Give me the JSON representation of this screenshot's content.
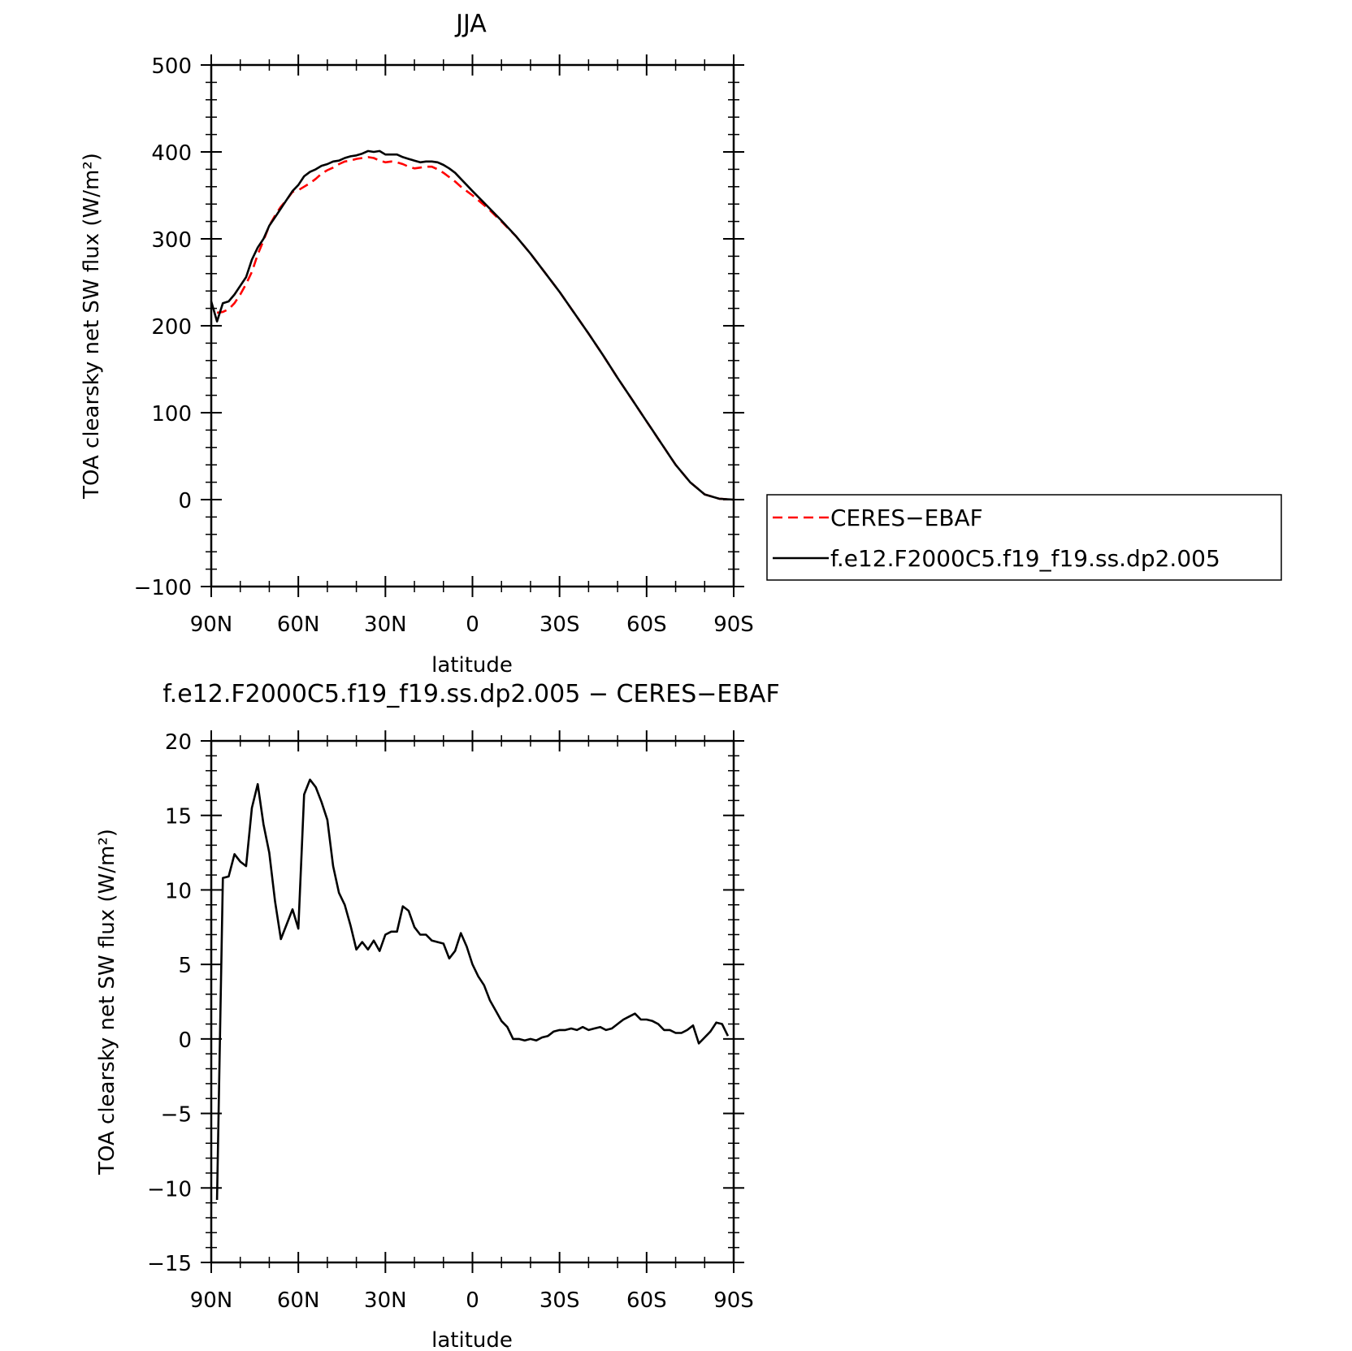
{
  "chart_data": [
    {
      "type": "line",
      "title": "JJA",
      "xlabel": "latitude",
      "ylabel": "TOA clearsky net SW flux (W/m²)",
      "xlim": [
        90,
        -90
      ],
      "ylim": [
        -100,
        500
      ],
      "xticks": [
        90,
        60,
        30,
        0,
        -30,
        -60,
        -90
      ],
      "xtick_labels": [
        "90N",
        "60N",
        "30N",
        "0",
        "30S",
        "60S",
        "90S"
      ],
      "yticks": [
        -100,
        0,
        100,
        200,
        300,
        400,
        500
      ],
      "ytick_labels": [
        "−100",
        "0",
        "100",
        "200",
        "300",
        "400",
        "500"
      ],
      "grid": false,
      "legend": {
        "placement": "outside-right",
        "entries": [
          "CERES−EBAF",
          "f.e12.F2000C5.f19_f19.ss.dp2.005"
        ]
      },
      "series": [
        {
          "name": "CERES−EBAF",
          "color": "#ff0000",
          "dash": "dashed",
          "x": [
            88,
            86,
            84,
            82,
            80,
            78,
            76,
            74,
            72,
            70,
            68,
            66,
            64,
            62,
            60,
            58,
            56,
            54,
            52,
            50,
            48,
            46,
            44,
            42,
            40,
            38,
            36,
            34,
            32,
            30,
            28,
            26,
            24,
            22,
            20,
            18,
            16,
            14,
            12,
            10,
            8,
            6,
            4,
            2,
            0,
            -5,
            -10,
            -15,
            -20,
            -25,
            -30,
            -35,
            -40,
            -45,
            -50,
            -55,
            -60,
            -62,
            -64,
            -66,
            -68,
            -70,
            -75,
            -80,
            -85,
            -90
          ],
          "y": [
            215,
            216,
            219,
            226,
            236,
            248,
            262,
            282,
            298,
            315,
            327,
            337,
            345,
            354,
            356,
            360,
            364,
            369,
            375,
            379,
            382,
            386,
            389,
            390,
            392,
            393,
            394,
            393,
            390,
            388,
            389,
            388,
            386,
            383,
            381,
            382,
            383,
            383,
            380,
            376,
            371,
            366,
            360,
            355,
            350,
            336,
            320,
            303,
            283,
            261,
            239,
            215,
            191,
            166,
            140,
            115,
            90,
            80,
            70,
            60,
            50,
            40,
            20,
            6,
            1,
            0
          ]
        },
        {
          "name": "f.e12.F2000C5.f19_f19.ss.dp2.005",
          "color": "#000000",
          "dash": "solid",
          "x": [
            90,
            88,
            86,
            84,
            82,
            80,
            78,
            76,
            74,
            72,
            70,
            68,
            66,
            64,
            62,
            60,
            58,
            56,
            54,
            52,
            50,
            48,
            46,
            44,
            42,
            40,
            38,
            36,
            34,
            32,
            30,
            28,
            26,
            24,
            22,
            20,
            18,
            16,
            14,
            12,
            10,
            8,
            6,
            4,
            2,
            0,
            -5,
            -10,
            -15,
            -20,
            -25,
            -30,
            -35,
            -40,
            -45,
            -50,
            -55,
            -60,
            -62,
            -64,
            -66,
            -68,
            -70,
            -75,
            -80,
            -85,
            -90
          ],
          "y": [
            228,
            205,
            226,
            228,
            236,
            246,
            256,
            276,
            290,
            300,
            315,
            325,
            335,
            345,
            355,
            362,
            372,
            377,
            380,
            384,
            386,
            389,
            390,
            393,
            395,
            396,
            398,
            401,
            400,
            401,
            397,
            397,
            397,
            394,
            392,
            390,
            388,
            389,
            389,
            388,
            385,
            381,
            376,
            369,
            362,
            355,
            338,
            321,
            303,
            283,
            261,
            239,
            215,
            191,
            166,
            140,
            115,
            90,
            80,
            70,
            60,
            50,
            40,
            20,
            6,
            1,
            0
          ]
        }
      ]
    },
    {
      "type": "line",
      "title": "f.e12.F2000C5.f19_f19.ss.dp2.005 − CERES−EBAF",
      "xlabel": "latitude",
      "ylabel": "TOA clearsky net SW flux (W/m²)",
      "xlim": [
        90,
        -90
      ],
      "ylim": [
        -15,
        20
      ],
      "xticks": [
        90,
        60,
        30,
        0,
        -30,
        -60,
        -90
      ],
      "xtick_labels": [
        "90N",
        "60N",
        "30N",
        "0",
        "30S",
        "60S",
        "90S"
      ],
      "yticks": [
        -15,
        -10,
        -5,
        0,
        5,
        10,
        15,
        20
      ],
      "ytick_labels": [
        "−15",
        "−10",
        "−5",
        "0",
        "5",
        "10",
        "15",
        "20"
      ],
      "grid": false,
      "series": [
        {
          "color": "#000000",
          "dash": "solid",
          "x": [
            88,
            86,
            84,
            82,
            80,
            78,
            76,
            74,
            72,
            70,
            68,
            66,
            64,
            62,
            60,
            58,
            56,
            54,
            52,
            50,
            48,
            46,
            44,
            42,
            40,
            38,
            36,
            34,
            32,
            30,
            28,
            26,
            24,
            22,
            20,
            18,
            16,
            14,
            12,
            10,
            8,
            6,
            4,
            2,
            0,
            -2,
            -4,
            -6,
            -8,
            -10,
            -12,
            -14,
            -16,
            -18,
            -20,
            -22,
            -24,
            -26,
            -28,
            -30,
            -32,
            -34,
            -36,
            -38,
            -40,
            -42,
            -44,
            -46,
            -48,
            -50,
            -52,
            -54,
            -56,
            -58,
            -60,
            -62,
            -64,
            -66,
            -68,
            -70,
            -72,
            -74,
            -76,
            -78,
            -80,
            -82,
            -84,
            -86,
            -88
          ],
          "y": [
            -10.8,
            10.8,
            10.9,
            12.4,
            11.9,
            11.6,
            15.5,
            17.1,
            14.4,
            12.5,
            9.2,
            6.7,
            7.7,
            8.7,
            7.4,
            16.4,
            17.4,
            16.9,
            15.9,
            14.7,
            11.6,
            9.8,
            9.0,
            7.6,
            6.0,
            6.5,
            6.0,
            6.6,
            5.9,
            7.0,
            7.2,
            7.2,
            8.9,
            8.6,
            7.5,
            7.0,
            7.0,
            6.6,
            6.5,
            6.4,
            5.4,
            5.9,
            7.1,
            6.2,
            5.0,
            4.2,
            3.6,
            2.6,
            1.9,
            1.2,
            0.8,
            0.0,
            0.0,
            -0.1,
            0.0,
            -0.1,
            0.1,
            0.2,
            0.5,
            0.6,
            0.6,
            0.7,
            0.6,
            0.8,
            0.6,
            0.7,
            0.8,
            0.6,
            0.7,
            1.0,
            1.3,
            1.5,
            1.7,
            1.3,
            1.3,
            1.2,
            1.0,
            0.6,
            0.6,
            0.4,
            0.4,
            0.6,
            0.9,
            -0.3,
            0.1,
            0.5,
            1.1,
            1.0,
            0.2
          ]
        }
      ]
    }
  ]
}
